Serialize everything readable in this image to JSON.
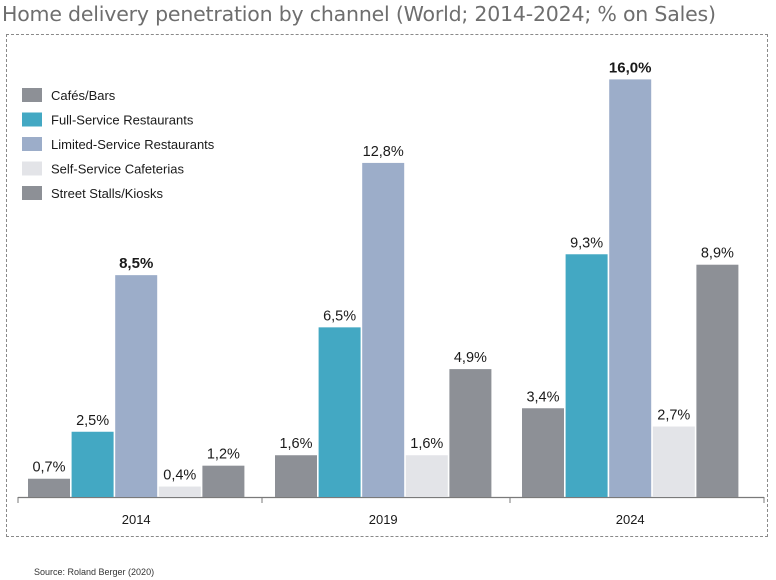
{
  "page": {
    "title": "Home delivery penetration by channel (World; 2014-2024; % on Sales)",
    "source": "Source: Roland Berger (2020)"
  },
  "chart_data": {
    "type": "bar",
    "title": "Home delivery penetration by channel (World; 2014-2024; % on Sales)",
    "xlabel": "",
    "ylabel": "",
    "ylim": [
      0,
      16
    ],
    "grid": false,
    "legend_position": "top-left",
    "categories": [
      "2014",
      "2019",
      "2024"
    ],
    "series": [
      {
        "name": "Cafés/Bars",
        "color": "#8d9096",
        "values": [
          0.7,
          1.6,
          3.4
        ],
        "labels": [
          "0,7%",
          "1,6%",
          "3,4%"
        ]
      },
      {
        "name": "Full-Service Restaurants",
        "color": "#43a8c3",
        "values": [
          2.5,
          6.5,
          9.3
        ],
        "labels": [
          "2,5%",
          "6,5%",
          "9,3%"
        ]
      },
      {
        "name": "Limited-Service Restaurants",
        "color": "#9cadc9",
        "values": [
          8.5,
          12.8,
          16.0
        ],
        "labels": [
          "8,5%",
          "12,8%",
          "16,0%"
        ]
      },
      {
        "name": "Self-Service Cafeterias",
        "color": "#e3e4e8",
        "values": [
          0.4,
          1.6,
          2.7
        ],
        "labels": [
          "0,4%",
          "1,6%",
          "2,7%"
        ]
      },
      {
        "name": "Street Stalls/Kiosks",
        "color": "#8d9096",
        "values": [
          1.2,
          4.9,
          8.9
        ],
        "labels": [
          "1,2%",
          "4,9%",
          "8,9%"
        ]
      }
    ],
    "bold_labels": [
      "8,5%",
      "16,0%"
    ]
  }
}
